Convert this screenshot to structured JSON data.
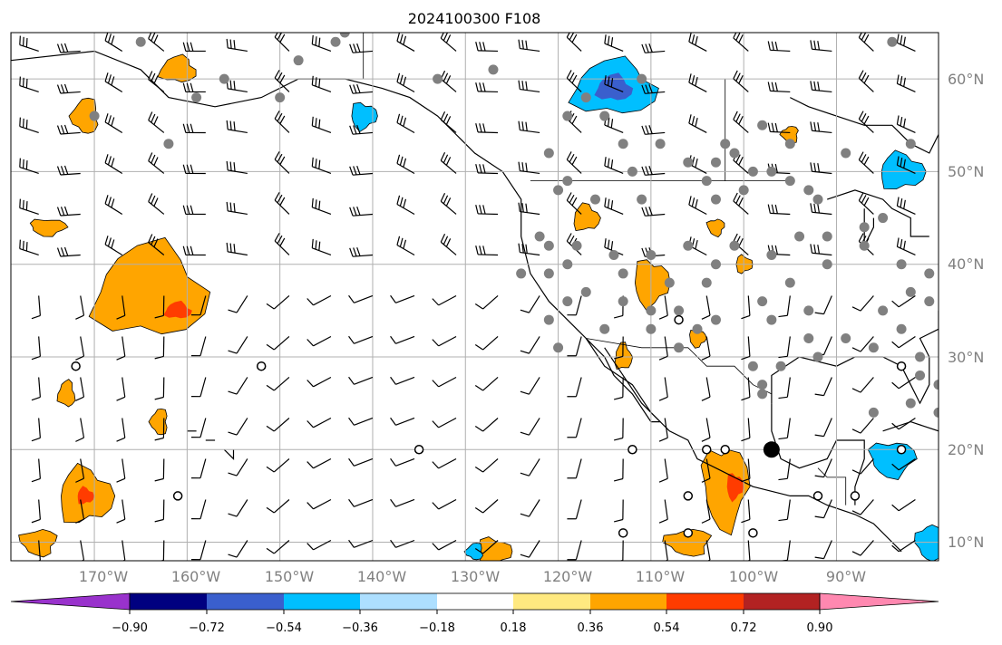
{
  "title": "2024100300 F108",
  "map": {
    "lat_labels": [
      "60°N",
      "50°N",
      "40°N",
      "30°N",
      "20°N",
      "10°N"
    ],
    "lon_labels": [
      "170°W",
      "160°W",
      "150°W",
      "140°W",
      "130°W",
      "120°W",
      "110°W",
      "100°W",
      "90°W"
    ],
    "lon_range": [
      -179,
      -79
    ],
    "lat_range": [
      8,
      65
    ],
    "colors": {
      "grid": "#b0b0b0",
      "coast": "#000000",
      "marker": "#808080"
    }
  },
  "colorbar": {
    "labels": [
      "−0.90",
      "−0.72",
      "−0.54",
      "−0.36",
      "−0.18",
      "0.18",
      "0.36",
      "0.54",
      "0.72",
      "0.90"
    ],
    "under_color": "#9932CC",
    "over_color": "#FF88B0",
    "colors": [
      "#000080",
      "#3A5FCD",
      "#00BFFF",
      "#ADDFFF",
      "#FFFFFF",
      "#FFE980",
      "#FFA500",
      "#FF3C00",
      "#B22222"
    ]
  },
  "fields": {
    "positive_areas": [
      {
        "center": [
          -164,
          37
        ],
        "size": [
          11,
          9
        ]
      },
      {
        "center": [
          -171,
          15
        ],
        "size": [
          5,
          5
        ]
      },
      {
        "center": [
          -110,
          38
        ],
        "size": [
          3,
          4
        ]
      },
      {
        "center": [
          -102,
          16
        ],
        "size": [
          4,
          8
        ]
      },
      {
        "center": [
          -106,
          10
        ],
        "size": [
          4,
          2
        ]
      },
      {
        "center": [
          -171,
          56
        ],
        "size": [
          2,
          3
        ]
      },
      {
        "center": [
          -161,
          61
        ],
        "size": [
          3,
          2
        ]
      },
      {
        "center": [
          -117,
          45
        ],
        "size": [
          2,
          2
        ]
      },
      {
        "center": [
          -127,
          9
        ],
        "size": [
          3,
          2
        ]
      },
      {
        "center": [
          -175,
          44
        ],
        "size": [
          3,
          1
        ]
      },
      {
        "center": [
          -176,
          10
        ],
        "size": [
          3,
          2
        ]
      },
      {
        "center": [
          -163,
          23
        ],
        "size": [
          1,
          2
        ]
      },
      {
        "center": [
          -173,
          26
        ],
        "size": [
          1,
          2
        ]
      },
      {
        "center": [
          -113,
          30
        ],
        "size": [
          1,
          2
        ]
      },
      {
        "center": [
          -100,
          40
        ],
        "size": [
          1,
          1
        ]
      },
      {
        "center": [
          -105,
          32
        ],
        "size": [
          1,
          1
        ]
      },
      {
        "center": [
          -103,
          44
        ],
        "size": [
          1,
          1
        ]
      },
      {
        "center": [
          -95,
          54
        ],
        "size": [
          1,
          1
        ]
      }
    ],
    "strong_positive_areas": [
      {
        "center": [
          -161,
          35
        ],
        "size": [
          2,
          1
        ]
      },
      {
        "center": [
          -171,
          15
        ],
        "size": [
          1,
          1
        ]
      },
      {
        "center": [
          -101,
          16
        ],
        "size": [
          1,
          2
        ]
      }
    ],
    "negative_areas": [
      {
        "center": [
          -114,
          59
        ],
        "size": [
          8,
          5
        ]
      },
      {
        "center": [
          -83,
          50
        ],
        "size": [
          4,
          3
        ]
      },
      {
        "center": [
          -141,
          56
        ],
        "size": [
          2,
          2
        ]
      },
      {
        "center": [
          -84,
          19
        ],
        "size": [
          4,
          3
        ]
      },
      {
        "center": [
          -80,
          10
        ],
        "size": [
          2,
          3
        ]
      },
      {
        "center": [
          -129,
          9
        ],
        "size": [
          1,
          1
        ]
      }
    ],
    "strong_negative_areas": [
      {
        "center": [
          -114,
          59
        ],
        "size": [
          3,
          2
        ]
      }
    ]
  },
  "gray_markers": [
    [
      -165,
      64
    ],
    [
      -144,
      64
    ],
    [
      -159,
      58
    ],
    [
      -148,
      62
    ],
    [
      -170,
      56
    ],
    [
      -162,
      53
    ],
    [
      -150,
      58
    ],
    [
      -156,
      60
    ],
    [
      -143,
      65
    ],
    [
      -133,
      60
    ],
    [
      -127,
      61
    ],
    [
      -117,
      58
    ],
    [
      -111,
      60
    ],
    [
      -98,
      55
    ],
    [
      -95,
      53
    ],
    [
      -119,
      56
    ],
    [
      -115,
      56
    ],
    [
      -113,
      53
    ],
    [
      -109,
      53
    ],
    [
      -102,
      53
    ],
    [
      -101,
      52
    ],
    [
      -103,
      51
    ],
    [
      -99,
      50
    ],
    [
      -97,
      50
    ],
    [
      -95,
      49
    ],
    [
      -93,
      48
    ],
    [
      -82,
      53
    ],
    [
      -84,
      64
    ],
    [
      -89,
      52
    ],
    [
      -121,
      52
    ],
    [
      -119,
      49
    ],
    [
      -112,
      50
    ],
    [
      -106,
      51
    ],
    [
      -104,
      49
    ],
    [
      -100,
      48
    ],
    [
      -120,
      48
    ],
    [
      -116,
      47
    ],
    [
      -111,
      47
    ],
    [
      -103,
      47
    ],
    [
      -92,
      47
    ],
    [
      -91,
      43
    ],
    [
      -87,
      44
    ],
    [
      -85,
      45
    ],
    [
      -122,
      43
    ],
    [
      -118,
      42
    ],
    [
      -114,
      41
    ],
    [
      -110,
      41
    ],
    [
      -106,
      42
    ],
    [
      -103,
      40
    ],
    [
      -101,
      42
    ],
    [
      -97,
      41
    ],
    [
      -94,
      43
    ],
    [
      -121,
      39
    ],
    [
      -113,
      39
    ],
    [
      -108,
      38
    ],
    [
      -104,
      38
    ],
    [
      -95,
      38
    ],
    [
      -91,
      40
    ],
    [
      -87,
      42
    ],
    [
      -83,
      40
    ],
    [
      -80,
      39
    ],
    [
      -119,
      36
    ],
    [
      -113,
      36
    ],
    [
      -107,
      35
    ],
    [
      -103,
      34
    ],
    [
      -98,
      36
    ],
    [
      -93,
      35
    ],
    [
      -85,
      35
    ],
    [
      -82,
      37
    ],
    [
      -80,
      36
    ],
    [
      -121,
      34
    ],
    [
      -115,
      33
    ],
    [
      -110,
      33
    ],
    [
      -105,
      33
    ],
    [
      -97,
      34
    ],
    [
      -93,
      32
    ],
    [
      -89,
      32
    ],
    [
      -83,
      33
    ],
    [
      -120,
      31
    ],
    [
      -96,
      29
    ],
    [
      -92,
      30
    ],
    [
      -86,
      31
    ],
    [
      -81,
      30
    ],
    [
      -98,
      27
    ],
    [
      -81,
      28
    ],
    [
      -79,
      27
    ],
    [
      -98,
      26
    ],
    [
      -86,
      24
    ],
    [
      -124,
      39
    ],
    [
      -121,
      42
    ],
    [
      -117,
      37
    ],
    [
      -107,
      31
    ],
    [
      -99,
      29
    ],
    [
      -82,
      25
    ],
    [
      -79,
      24
    ],
    [
      -119,
      40
    ],
    [
      -110,
      35
    ]
  ],
  "open_circles": [
    [
      -172,
      29
    ],
    [
      -152,
      29
    ],
    [
      -161,
      15
    ],
    [
      -135,
      20
    ],
    [
      -107,
      34
    ],
    [
      -112,
      20
    ],
    [
      -104,
      20
    ],
    [
      -102,
      20
    ],
    [
      -83,
      29
    ],
    [
      -92,
      15
    ],
    [
      -88,
      15
    ],
    [
      -106,
      15
    ],
    [
      -113,
      11
    ],
    [
      -106,
      11
    ],
    [
      -99,
      11
    ],
    [
      -83,
      20
    ]
  ],
  "filled_dot": [
    -97,
    20
  ]
}
